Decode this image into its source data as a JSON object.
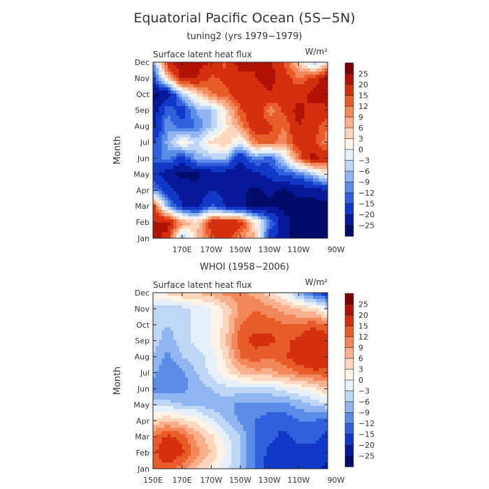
{
  "figure": {
    "title": "Equatorial Pacific Ocean (5S−5N)"
  },
  "colorbar": {
    "labels": [
      "25",
      "20",
      "15",
      "12",
      "9",
      "6",
      "3",
      "0",
      "−3",
      "−6",
      "−9",
      "−12",
      "−15",
      "−20",
      "−25"
    ],
    "colors": [
      "#7a0003",
      "#b01205",
      "#d43010",
      "#e85c2a",
      "#f2875a",
      "#f8b08c",
      "#fcd6bd",
      "#fff3e6",
      "#e6f0fb",
      "#bfd6f6",
      "#8fb6f0",
      "#5a8ce8",
      "#3060de",
      "#1238c8",
      "#06199a",
      "#010b68"
    ]
  },
  "chart_data": [
    {
      "type": "heatmap",
      "title": "tuning2 (yrs 1979−1979)",
      "subtitle": "Surface latent heat flux",
      "units": "W/m²",
      "ylabel": "Month",
      "y_ticks": [
        "Jan",
        "Feb",
        "Mar",
        "Apr",
        "May",
        "Jun",
        "Jul",
        "Aug",
        "Sep",
        "Oct",
        "Nov",
        "Dec"
      ],
      "x_ticks": [
        "170E",
        "170W",
        "150W",
        "130W",
        "110W",
        "90W"
      ],
      "x_tick_lon": [
        170,
        190,
        210,
        230,
        250,
        270
      ],
      "xlim_lon": [
        150,
        270
      ],
      "ylim_month": [
        0,
        11
      ],
      "lon": [
        150,
        160,
        170,
        180,
        190,
        200,
        210,
        220,
        230,
        240,
        250,
        260,
        270
      ],
      "values": [
        [
          22,
          18,
          -8,
          6,
          14,
          18,
          10,
          6,
          -18,
          -24,
          -26,
          -28,
          -28
        ],
        [
          20,
          22,
          10,
          4,
          18,
          20,
          18,
          4,
          -10,
          -24,
          -26,
          -28,
          -28
        ],
        [
          18,
          -8,
          -20,
          -22,
          -14,
          -20,
          -24,
          -26,
          -26,
          -26,
          -26,
          -28,
          -28
        ],
        [
          -10,
          -18,
          -22,
          -24,
          -20,
          -22,
          -24,
          -26,
          -24,
          -26,
          -24,
          -22,
          -20
        ],
        [
          -18,
          -24,
          -26,
          -26,
          -24,
          -24,
          -24,
          -22,
          -18,
          -14,
          -12,
          -6,
          2
        ],
        [
          -14,
          -10,
          -18,
          -8,
          -6,
          -6,
          -20,
          -10,
          -14,
          -4,
          12,
          22,
          18
        ],
        [
          -16,
          -8,
          2,
          -4,
          4,
          6,
          -2,
          12,
          14,
          10,
          18,
          16,
          10
        ],
        [
          -22,
          -10,
          -14,
          -12,
          -6,
          2,
          10,
          18,
          16,
          12,
          20,
          18,
          12
        ],
        [
          -24,
          -12,
          -18,
          -8,
          -6,
          4,
          14,
          20,
          10,
          16,
          22,
          18,
          18
        ],
        [
          -26,
          -24,
          -6,
          4,
          12,
          14,
          18,
          16,
          20,
          16,
          18,
          22,
          24
        ],
        [
          -18,
          6,
          22,
          20,
          14,
          16,
          18,
          20,
          22,
          18,
          12,
          16,
          24
        ],
        [
          -10,
          18,
          24,
          22,
          20,
          14,
          24,
          20,
          22,
          14,
          6,
          -6,
          2
        ]
      ]
    },
    {
      "type": "heatmap",
      "title": "WHOI (1958−2006)",
      "subtitle": "Surface latent heat flux",
      "units": "W/m²",
      "ylabel": "Month",
      "y_ticks": [
        "Jan",
        "Feb",
        "Mar",
        "Apr",
        "May",
        "Jun",
        "Jul",
        "Aug",
        "Sep",
        "Oct",
        "Nov",
        "Dec"
      ],
      "x_ticks": [
        "150E",
        "170E",
        "170W",
        "150W",
        "130W",
        "110W",
        "90W"
      ],
      "x_tick_lon": [
        150,
        170,
        190,
        210,
        230,
        250,
        270
      ],
      "xlim_lon": [
        150,
        270
      ],
      "ylim_month": [
        0,
        11
      ],
      "lon": [
        150,
        160,
        170,
        180,
        190,
        200,
        210,
        220,
        230,
        240,
        250,
        260,
        270
      ],
      "values": [
        [
          12,
          14,
          10,
          6,
          2,
          -2,
          -6,
          -12,
          -18,
          -20,
          -18,
          -18,
          -22
        ],
        [
          14,
          18,
          16,
          10,
          6,
          0,
          -6,
          -12,
          -16,
          -18,
          -16,
          -16,
          -18
        ],
        [
          12,
          16,
          14,
          8,
          4,
          -2,
          -6,
          -12,
          -14,
          -16,
          -14,
          -14,
          -16
        ],
        [
          4,
          6,
          4,
          2,
          -2,
          -6,
          -10,
          -12,
          -14,
          -14,
          -12,
          -12,
          -14
        ],
        [
          -4,
          -4,
          -6,
          -6,
          -8,
          -8,
          -10,
          -10,
          -10,
          -10,
          -8,
          -6,
          -4
        ],
        [
          -10,
          -12,
          -10,
          -8,
          -6,
          -4,
          -4,
          -4,
          -4,
          -2,
          0,
          2,
          6
        ],
        [
          -8,
          -12,
          -10,
          -6,
          -2,
          2,
          6,
          8,
          8,
          10,
          12,
          14,
          14
        ],
        [
          -6,
          -10,
          -6,
          -4,
          -2,
          4,
          12,
          14,
          12,
          14,
          18,
          20,
          18
        ],
        [
          -4,
          -8,
          -4,
          -2,
          0,
          6,
          14,
          16,
          16,
          14,
          16,
          20,
          18
        ],
        [
          -4,
          -6,
          -4,
          -2,
          0,
          4,
          12,
          14,
          14,
          12,
          12,
          14,
          12
        ],
        [
          -4,
          -6,
          -4,
          -2,
          0,
          4,
          10,
          12,
          10,
          8,
          6,
          4,
          -2
        ],
        [
          2,
          4,
          6,
          6,
          8,
          10,
          10,
          8,
          4,
          0,
          -8,
          -14,
          -18
        ]
      ]
    }
  ]
}
